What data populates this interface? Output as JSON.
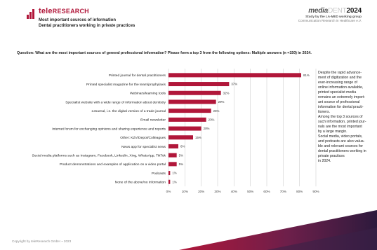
{
  "brand": {
    "name": "teleRESEARCH",
    "name_main": "tele",
    "name_caps": "Research"
  },
  "header": {
    "title_line1": "Most important sources of information",
    "title_line2": "Dental practitioners working in private practices",
    "logo_prefix": "media",
    "logo_dent": "DENT",
    "logo_year": "2024",
    "study_line": "Study by the LA-MED working group",
    "study_line2": "Communication Research in Healthcare e.V."
  },
  "question": "Question: What are the most important sources of general professional information? Please form a top 3 from the following options: Multiple answers (n =150) in 2024.",
  "note": "Despite the rapid advance-\nment of digitization and the\never-increasing range of\nonline information available,\nprinted specialist media\nremains an extremely import-\nant source of professional\ninformation for dental practi-\ntioners.\nAmong the top 3 sources of\nsuch information, printed jour-\nnals are the most important\nby a large margin.\nSocial media, video portals,\nand podcasts are also valua-\nble and relevant sources for\ndental practitioners working in\nprivate practices\nin 2024.",
  "copyright": "Copyright by teleResearch GmbH ~ 2023",
  "colors": {
    "bar": "#b1173a",
    "accent": "#b1173a",
    "footer_dark": "#2d1a3d"
  },
  "chart_data": {
    "type": "bar",
    "orientation": "horizontal",
    "categories": [
      "Printed journal for dental practitioners",
      "Printed specialist magazine for the team/prophylaxis",
      "Webinars/learning tools",
      "Specialist website with a wide range of information about dentistry",
      "eJournal, i.e. the digital version of a trade journal",
      "Email newsletter",
      "Internet forum for exchanging opinions and sharing experience and reports",
      "Other: KZV/Depot/Colleagues",
      "News app for specialist news",
      "Social media platforms such as Instagram, Facebook, LinkedIn, Xing, WhatsApp, TikTok",
      "Product demonstrations and examples of application on a video portal",
      "Podcasts",
      "None of the above/no information"
    ],
    "values": [
      81,
      37,
      32,
      29,
      26,
      23,
      20,
      15,
      6,
      5,
      5,
      1,
      1
    ],
    "value_labels": [
      "81%",
      "37%",
      "32%",
      "29%",
      "26%",
      "23%",
      "20%",
      "15%",
      "6%",
      "5%",
      "5%",
      "1%",
      "1%"
    ],
    "xlim": [
      0,
      90
    ],
    "x_ticks": [
      "0%",
      "10%",
      "20%",
      "30%",
      "40%",
      "50%",
      "60%",
      "70%",
      "80%",
      "90%"
    ],
    "grid": true,
    "title": "",
    "xlabel": "",
    "ylabel": ""
  }
}
